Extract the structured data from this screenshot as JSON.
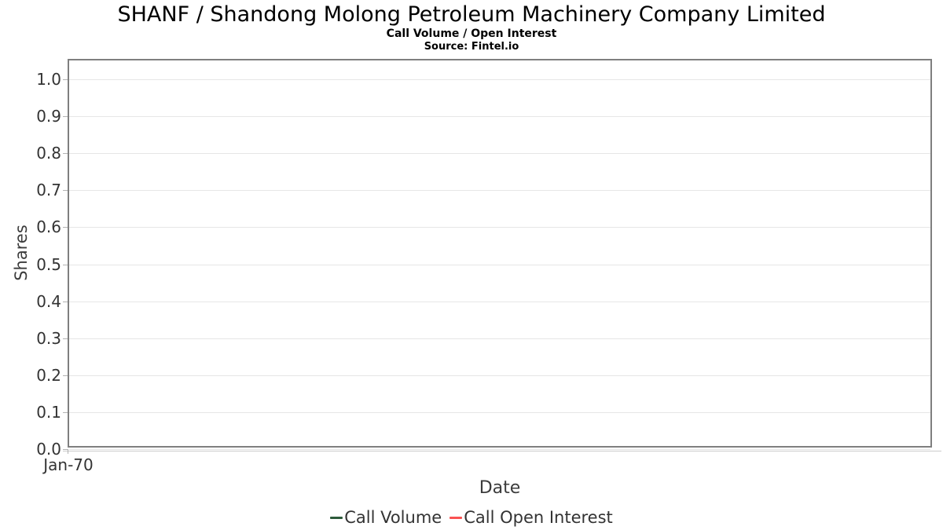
{
  "header": {
    "title": "SHANF / Shandong Molong Petroleum Machinery Company Limited",
    "subtitle": "Call Volume / Open Interest",
    "source": "Source: Fintel.io"
  },
  "chart_data": {
    "type": "line",
    "title": "SHANF / Shandong Molong Petroleum Machinery Company Limited",
    "subtitle": "Call Volume / Open Interest",
    "source": "Source: Fintel.io",
    "xlabel": "Date",
    "ylabel": "Shares",
    "x_ticks": [
      "Jan-70"
    ],
    "y_ticks": [
      0.0,
      0.1,
      0.2,
      0.3,
      0.4,
      0.5,
      0.6,
      0.7,
      0.8,
      0.9,
      1.0
    ],
    "ylim": [
      0.0,
      1.05
    ],
    "grid": "horizontal-only",
    "legend_position": "bottom-center",
    "series": [
      {
        "name": "Call Volume",
        "color": "#2d5a3b",
        "x": [],
        "values": []
      },
      {
        "name": "Call Open Interest",
        "color": "#fa5252",
        "x": [],
        "values": []
      }
    ]
  },
  "colors": {
    "plot_border": "#7f7f7f",
    "gridline": "#e6e6e6",
    "tick_label": "#333333",
    "axis_title": "#3c3c3c",
    "call_volume": "#2d5a3b",
    "call_open_interest": "#fa5252"
  }
}
